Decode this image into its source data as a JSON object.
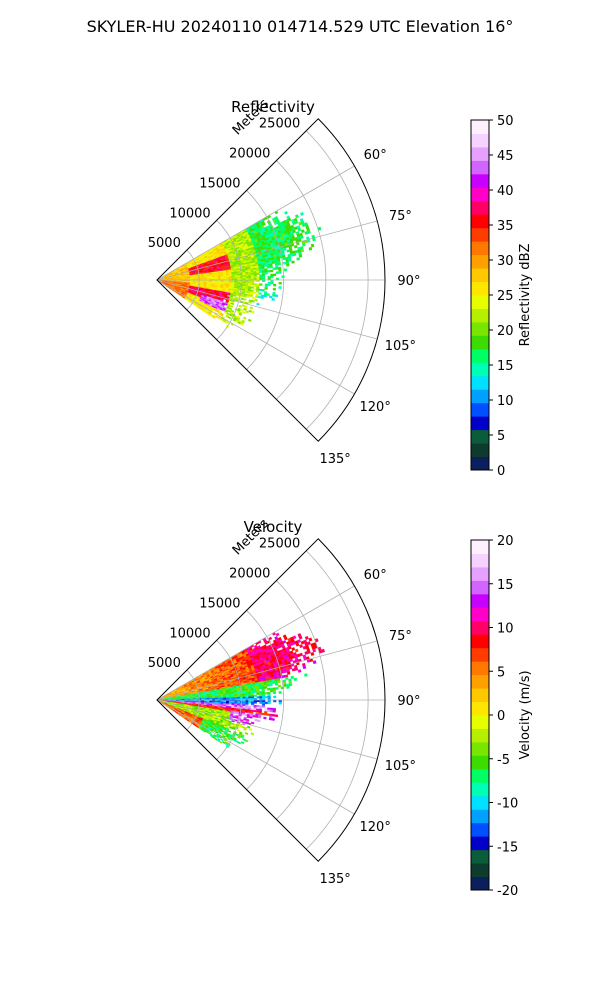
{
  "figure_title": "SKYLER-HU  20240110  014714.529 UTC Elevation 16°",
  "chart_data": [
    {
      "type": "polar-sector",
      "title": "Reflectivity",
      "radial_axis_label": "Meters",
      "radial_ticks": [
        5000,
        10000,
        15000,
        20000,
        25000
      ],
      "radial_tick_labels": [
        "5000",
        "10000",
        "15000",
        "20000",
        "25000"
      ],
      "r_max": 27000,
      "angle_range_deg": [
        45,
        135
      ],
      "angle_ticks": [
        60,
        75,
        90,
        105,
        120,
        135
      ],
      "angle_tick_labels": [
        "60°",
        "75°",
        "90°",
        "105°",
        "120°",
        "135°"
      ],
      "grid": true,
      "colorbar": {
        "label": "Reflectivity dBZ",
        "min": 0,
        "max": 50,
        "ticks": [
          0,
          5,
          10,
          15,
          20,
          25,
          30,
          35,
          40,
          45,
          50
        ],
        "tick_labels": [
          "0",
          "5",
          "10",
          "15",
          "20",
          "25",
          "30",
          "35",
          "40",
          "45",
          "50"
        ],
        "colors": [
          "#0b1f5c",
          "#0d3c2e",
          "#0a5c3a",
          "#0000c8",
          "#0050ff",
          "#00a0ff",
          "#00e0ff",
          "#00ffb4",
          "#00ff64",
          "#3cdc00",
          "#78e600",
          "#b4f000",
          "#e6ff00",
          "#ffe600",
          "#ffc800",
          "#ffa000",
          "#ff7800",
          "#ff3c00",
          "#ff0000",
          "#ff0064",
          "#ff00c8",
          "#c800ff",
          "#d264ff",
          "#e6a0ff",
          "#f5d2ff",
          "#fff0ff"
        ]
      },
      "echo_range_m": [
        0,
        21000
      ],
      "echo_angle_range_deg": [
        60,
        124
      ]
    },
    {
      "type": "polar-sector",
      "title": "Velocity",
      "radial_axis_label": "Meters",
      "radial_ticks": [
        5000,
        10000,
        15000,
        20000,
        25000
      ],
      "radial_tick_labels": [
        "5000",
        "10000",
        "15000",
        "20000",
        "25000"
      ],
      "r_max": 27000,
      "angle_range_deg": [
        45,
        135
      ],
      "angle_ticks": [
        60,
        75,
        90,
        105,
        120,
        135
      ],
      "angle_tick_labels": [
        "60°",
        "75°",
        "90°",
        "105°",
        "120°",
        "135°"
      ],
      "grid": true,
      "colorbar": {
        "label": "Velocity (m/s)",
        "min": -20,
        "max": 20,
        "ticks": [
          -20,
          -15,
          -10,
          -5,
          0,
          5,
          10,
          15,
          20
        ],
        "tick_labels": [
          "-20",
          "-15",
          "-10",
          "-5",
          "0",
          "5",
          "10",
          "15",
          "20"
        ],
        "colors": [
          "#0b1f5c",
          "#0d3c2e",
          "#0a5c3a",
          "#0000c8",
          "#0050ff",
          "#00a0ff",
          "#00e0ff",
          "#00ffb4",
          "#00ff64",
          "#3cdc00",
          "#78e600",
          "#b4f000",
          "#e6ff00",
          "#ffe600",
          "#ffc800",
          "#ffa000",
          "#ff7800",
          "#ff3c00",
          "#ff0000",
          "#ff0064",
          "#ff00c8",
          "#c800ff",
          "#d264ff",
          "#e6a0ff",
          "#f5d2ff",
          "#fff0ff"
        ]
      },
      "echo_range_m": [
        0,
        21000
      ],
      "echo_angle_range_deg": [
        60,
        124
      ]
    }
  ]
}
